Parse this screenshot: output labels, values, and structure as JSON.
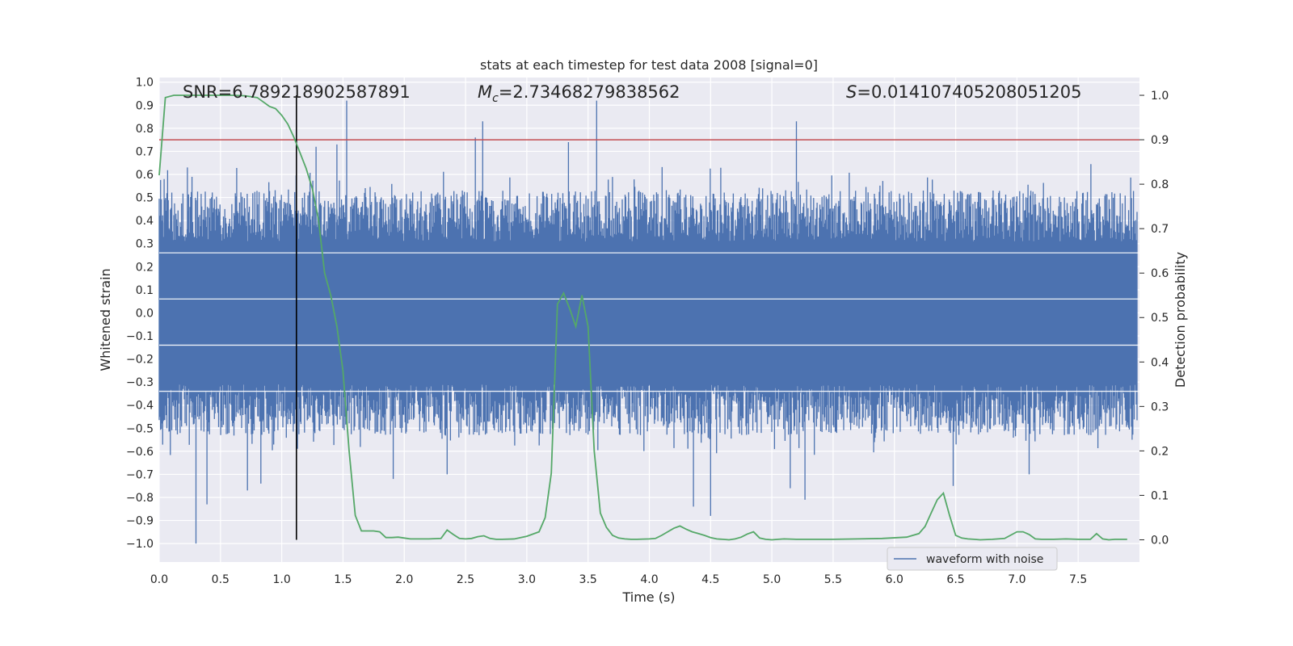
{
  "chart_data": {
    "type": "line",
    "title": "stats at each timestep for test data 2008 [signal=0]",
    "xlabel": "Time (s)",
    "ylabel_left": "Whitened strain",
    "ylabel_right": "Detection probability",
    "xlim": [
      0.0,
      8.0
    ],
    "ylim_left": [
      -1.08,
      1.02
    ],
    "ylim_right": [
      -0.05,
      1.04
    ],
    "x_ticks": [
      0.0,
      0.5,
      1.0,
      1.5,
      2.0,
      2.5,
      3.0,
      3.5,
      4.0,
      4.5,
      5.0,
      5.5,
      6.0,
      6.5,
      7.0,
      7.5
    ],
    "x_tick_labels": [
      "0.0",
      "0.5",
      "1.0",
      "1.5",
      "2.0",
      "2.5",
      "3.0",
      "3.5",
      "4.0",
      "4.5",
      "5.0",
      "5.5",
      "6.0",
      "6.5",
      "7.0",
      "7.5"
    ],
    "y_left_ticks": [
      1.0,
      0.9,
      0.8,
      0.7,
      0.6,
      0.5,
      0.4,
      0.3,
      0.2,
      0.1,
      0.0,
      -0.1,
      -0.2,
      -0.3,
      -0.4,
      -0.5,
      -0.6,
      -0.7,
      -0.8,
      -0.9,
      -1.0
    ],
    "y_left_tick_labels": [
      "1.0",
      "0.9",
      "0.8",
      "0.7",
      "0.6",
      "0.5",
      "0.4",
      "0.3",
      "0.2",
      "0.1",
      "0.0",
      "−0.1",
      "−0.2",
      "−0.3",
      "−0.4",
      "−0.5",
      "−0.6",
      "−0.7",
      "−0.8",
      "−0.9",
      "−1.0"
    ],
    "y_right_ticks": [
      1.0,
      0.9,
      0.8,
      0.7,
      0.6,
      0.5,
      0.4,
      0.3,
      0.2,
      0.1,
      0.0
    ],
    "y_right_tick_labels": [
      "1.0",
      "0.9",
      "0.8",
      "0.7",
      "0.6",
      "0.5",
      "0.4",
      "0.3",
      "0.2",
      "0.1",
      "0.0"
    ],
    "annotations": {
      "snr": "SNR=6.789218902587891",
      "mc_symbol": "M",
      "mc_sub": "c",
      "mc_value": "=2.73468279838562",
      "s_symbol": "S",
      "s_value": "=0.014107405208051205"
    },
    "threshold_right": 0.9,
    "vline_x": 1.12,
    "series": [
      {
        "name": "waveform with noise",
        "axis": "left",
        "kind": "noise",
        "color": "#4c72b0",
        "core_abs": 0.31,
        "typical_abs_range": [
          0.3,
          0.6
        ],
        "max_spikes": [
          {
            "x": 0.04,
            "y": 0.58
          },
          {
            "x": 0.23,
            "y": 0.63
          },
          {
            "x": 0.3,
            "y": -1.0
          },
          {
            "x": 0.39,
            "y": -0.83
          },
          {
            "x": 0.72,
            "y": -0.77
          },
          {
            "x": 0.83,
            "y": -0.74
          },
          {
            "x": 1.28,
            "y": 0.72
          },
          {
            "x": 1.45,
            "y": 0.73
          },
          {
            "x": 1.53,
            "y": 0.92
          },
          {
            "x": 1.91,
            "y": -0.72
          },
          {
            "x": 2.35,
            "y": -0.7
          },
          {
            "x": 2.58,
            "y": 0.76
          },
          {
            "x": 2.64,
            "y": 0.83
          },
          {
            "x": 3.34,
            "y": 0.74
          },
          {
            "x": 3.57,
            "y": 0.92
          },
          {
            "x": 4.36,
            "y": -0.84
          },
          {
            "x": 4.5,
            "y": -0.88
          },
          {
            "x": 5.15,
            "y": -0.76
          },
          {
            "x": 5.2,
            "y": 0.83
          },
          {
            "x": 5.27,
            "y": -0.81
          },
          {
            "x": 6.48,
            "y": -0.75
          },
          {
            "x": 7.1,
            "y": -0.7
          }
        ]
      },
      {
        "name": "detection probability",
        "axis": "right",
        "kind": "line",
        "color": "#55a868",
        "x": [
          0.0,
          0.05,
          0.12,
          0.2,
          0.3,
          0.4,
          0.5,
          0.6,
          0.7,
          0.8,
          0.85,
          0.9,
          0.95,
          1.0,
          1.05,
          1.1,
          1.15,
          1.2,
          1.25,
          1.3,
          1.35,
          1.4,
          1.45,
          1.5,
          1.55,
          1.6,
          1.65,
          1.7,
          1.75,
          1.8,
          1.85,
          1.9,
          1.95,
          2.0,
          2.05,
          2.1,
          2.2,
          2.3,
          2.35,
          2.4,
          2.45,
          2.5,
          2.55,
          2.6,
          2.65,
          2.7,
          2.75,
          2.8,
          2.9,
          3.0,
          3.1,
          3.15,
          3.2,
          3.25,
          3.3,
          3.35,
          3.4,
          3.45,
          3.5,
          3.55,
          3.6,
          3.65,
          3.7,
          3.75,
          3.8,
          3.85,
          3.9,
          4.0,
          4.05,
          4.1,
          4.15,
          4.2,
          4.25,
          4.3,
          4.35,
          4.4,
          4.45,
          4.5,
          4.55,
          4.6,
          4.65,
          4.7,
          4.75,
          4.8,
          4.85,
          4.9,
          4.95,
          5.0,
          5.05,
          5.1,
          5.2,
          5.3,
          5.5,
          5.7,
          5.9,
          6.1,
          6.2,
          6.25,
          6.3,
          6.35,
          6.4,
          6.45,
          6.5,
          6.55,
          6.6,
          6.65,
          6.7,
          6.8,
          6.9,
          7.0,
          7.05,
          7.1,
          7.15,
          7.2,
          7.25,
          7.3,
          7.4,
          7.5,
          7.6,
          7.65,
          7.7,
          7.75,
          7.8,
          7.85,
          7.9
        ],
        "y": [
          0.82,
          0.995,
          1.0,
          1.0,
          1.0,
          1.0,
          1.0,
          1.0,
          0.999,
          0.995,
          0.985,
          0.975,
          0.97,
          0.955,
          0.935,
          0.905,
          0.87,
          0.835,
          0.79,
          0.72,
          0.6,
          0.55,
          0.48,
          0.38,
          0.2,
          0.055,
          0.02,
          0.02,
          0.02,
          0.018,
          0.005,
          0.005,
          0.006,
          0.004,
          0.002,
          0.002,
          0.002,
          0.003,
          0.022,
          0.012,
          0.003,
          0.002,
          0.003,
          0.007,
          0.009,
          0.003,
          0.001,
          0.001,
          0.002,
          0.008,
          0.018,
          0.05,
          0.15,
          0.53,
          0.555,
          0.52,
          0.48,
          0.55,
          0.48,
          0.2,
          0.06,
          0.028,
          0.01,
          0.004,
          0.002,
          0.001,
          0.001,
          0.002,
          0.003,
          0.01,
          0.018,
          0.026,
          0.031,
          0.024,
          0.018,
          0.014,
          0.01,
          0.005,
          0.002,
          0.001,
          0.0,
          0.002,
          0.006,
          0.013,
          0.018,
          0.004,
          0.001,
          0.0,
          0.001,
          0.002,
          0.001,
          0.001,
          0.001,
          0.002,
          0.003,
          0.006,
          0.014,
          0.03,
          0.06,
          0.09,
          0.105,
          0.055,
          0.01,
          0.004,
          0.002,
          0.001,
          0.0,
          0.001,
          0.003,
          0.018,
          0.018,
          0.012,
          0.002,
          0.001,
          0.001,
          0.001,
          0.002,
          0.001,
          0.001,
          0.014,
          0.002,
          0.0,
          0.001,
          0.001,
          0.001
        ]
      },
      {
        "name": "threshold",
        "axis": "right",
        "kind": "hline",
        "color": "#c44e52",
        "y": 0.9
      }
    ],
    "legend": {
      "position": "bottom-right",
      "entries": [
        {
          "label": "waveform with noise",
          "color": "#4c72b0"
        }
      ]
    },
    "grid": true
  }
}
